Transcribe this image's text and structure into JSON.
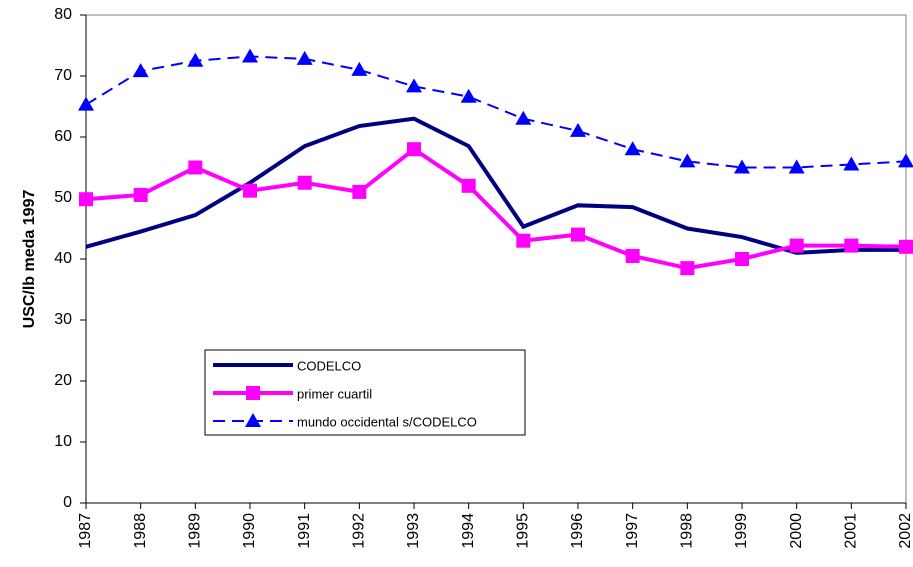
{
  "chart_data": {
    "type": "line",
    "y_label": "USC/lb meda 1997",
    "categories": [
      "1987",
      "1988",
      "1989",
      "1990",
      "1991",
      "1992",
      "1993",
      "1994",
      "1995",
      "1996",
      "1997",
      "1998",
      "1999",
      "2000",
      "2001",
      "2002"
    ],
    "series": [
      {
        "name": "CODELCO",
        "color": "#000080",
        "dashed": false,
        "marker": "none",
        "values": [
          42,
          44.5,
          47.2,
          52.5,
          58.5,
          61.8,
          63,
          58.5,
          45.3,
          48.8,
          48.5,
          45,
          43.6,
          41,
          41.5,
          41.5
        ]
      },
      {
        "name": "primer cuartil",
        "color": "#ff00ff",
        "dashed": false,
        "marker": "square",
        "values": [
          49.8,
          50.5,
          55,
          51.2,
          52.5,
          51,
          58,
          52,
          43,
          44,
          40.5,
          38.5,
          40,
          42.2,
          42.2,
          42
        ]
      },
      {
        "name": "mundo occidental s/CODELCO",
        "color": "#0000ff",
        "dashed": true,
        "marker": "triangle",
        "values": [
          65.3,
          70.8,
          72.5,
          73.2,
          72.8,
          71,
          68.3,
          66.6,
          63,
          61,
          58,
          56,
          55,
          55,
          55.5,
          56
        ]
      }
    ],
    "ylim": [
      0,
      80
    ],
    "yticks": [
      0,
      10,
      20,
      30,
      40,
      50,
      60,
      70,
      80
    ]
  }
}
